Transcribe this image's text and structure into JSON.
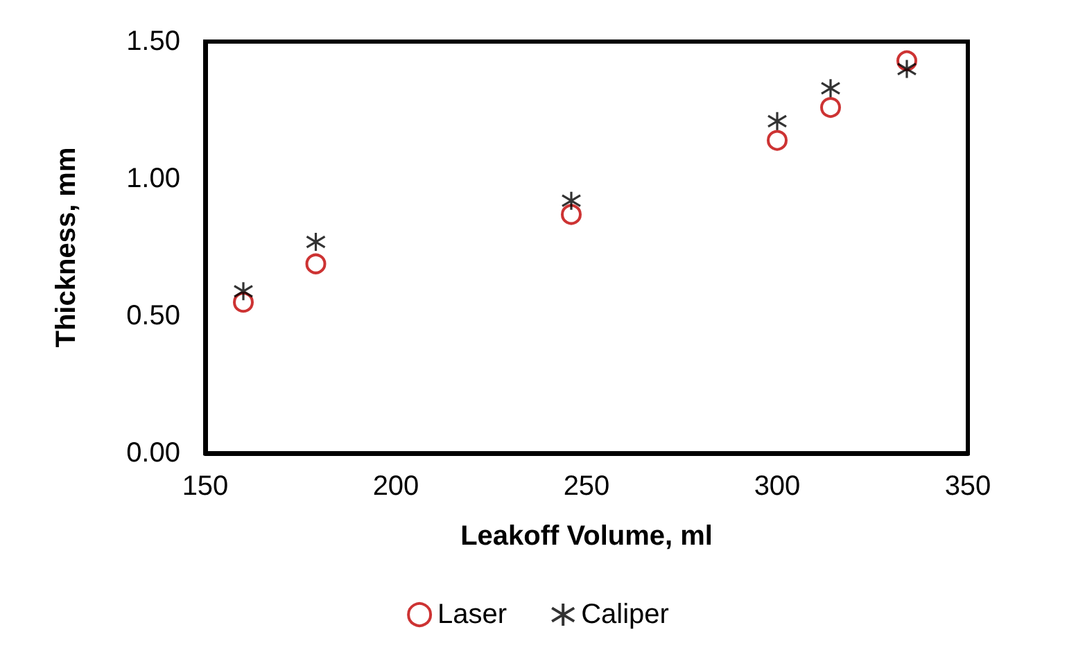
{
  "chart_data": {
    "type": "scatter",
    "xlabel": "Leakoff Volume, ml",
    "ylabel": "Thickness, mm",
    "xlim": [
      150,
      350
    ],
    "xticks": [
      150,
      200,
      250,
      300,
      350
    ],
    "ylim": [
      0,
      1.5
    ],
    "yticks": [
      {
        "value": 0,
        "label": "0.00"
      },
      {
        "value": 0.5,
        "label": "0.50"
      },
      {
        "value": 1,
        "label": "1.00"
      },
      {
        "value": 1.5,
        "label": "1.50"
      }
    ],
    "grid": false,
    "legend": "bottom",
    "series": [
      {
        "name": "Laser",
        "color": "#c00000",
        "marker": "circle",
        "x": [
          160,
          179,
          246,
          300,
          314,
          334
        ],
        "values": [
          0.55,
          0.69,
          0.87,
          1.14,
          1.26,
          1.43
        ]
      },
      {
        "name": "Caliper",
        "color": "#000000",
        "marker": "cross",
        "x": [
          160,
          179,
          246,
          300,
          314,
          334
        ],
        "values": [
          0.59,
          0.77,
          0.92,
          1.21,
          1.33,
          1.4
        ]
      }
    ]
  }
}
